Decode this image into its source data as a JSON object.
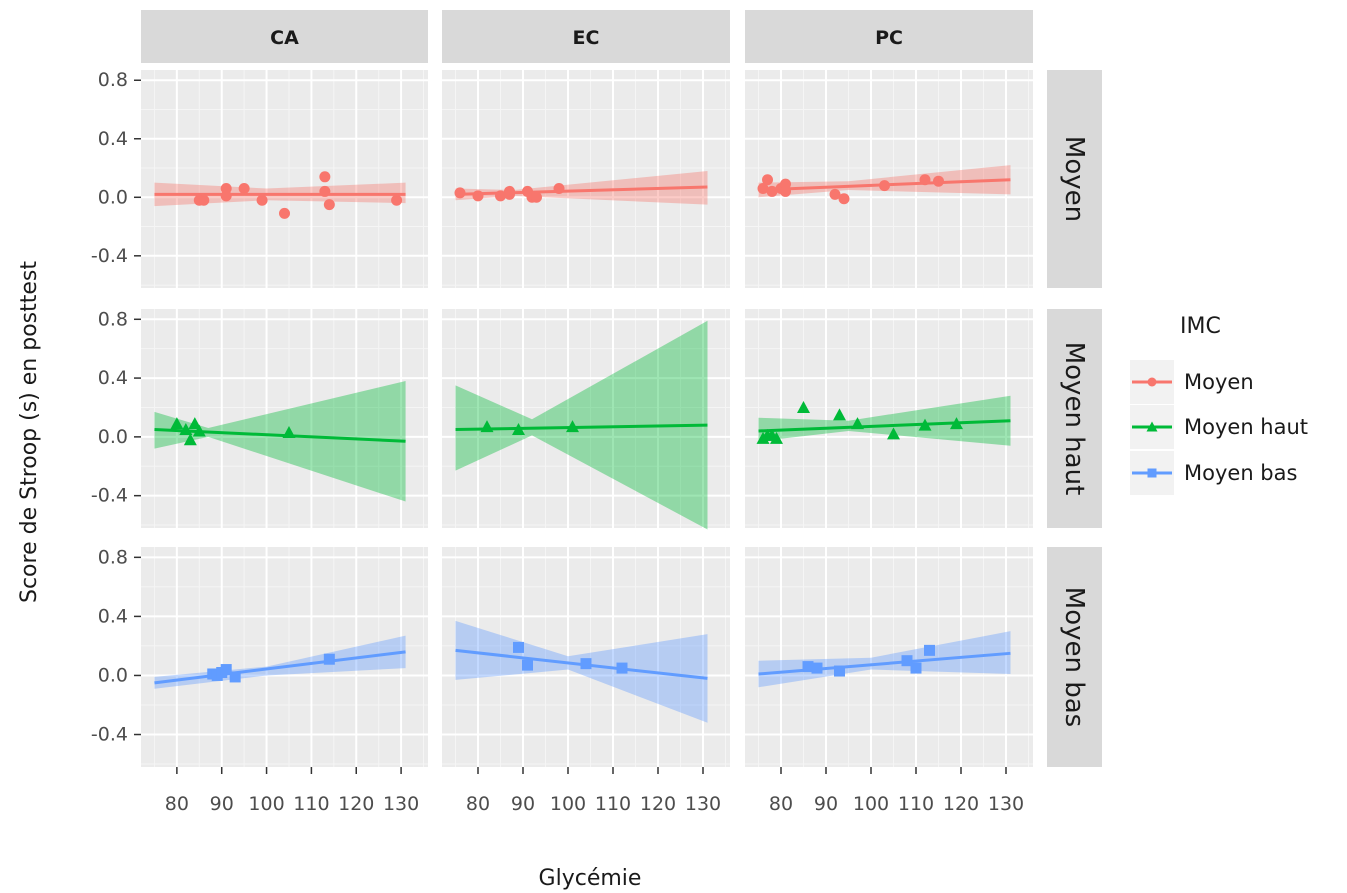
{
  "chart_data": {
    "type": "scatter",
    "xlabel": "Glycémie",
    "ylabel": "Score de Stroop (s) en posttest",
    "xlim": [
      72,
      136
    ],
    "ylim": [
      -0.62,
      0.87
    ],
    "x_ticks": [
      80,
      90,
      100,
      110,
      120,
      130
    ],
    "x_tick_labels": [
      "80",
      "90",
      "100",
      "110",
      "120",
      "130"
    ],
    "y_ticks": [
      -0.4,
      0.0,
      0.4,
      0.8
    ],
    "y_tick_labels": [
      "-0.4",
      "0.0",
      "0.4",
      "0.8"
    ],
    "grid": true,
    "legend": {
      "title": "IMC",
      "position": "right",
      "items": [
        {
          "label": "Moyen",
          "color": "#F8766D",
          "shape": "circle"
        },
        {
          "label": "Moyen haut",
          "color": "#00BA38",
          "shape": "triangle"
        },
        {
          "label": "Moyen bas",
          "color": "#619CFF",
          "shape": "square"
        }
      ]
    },
    "facet_columns": [
      "CA",
      "EC",
      "PC"
    ],
    "facet_rows": [
      "Moyen",
      "Moyen haut",
      "Moyen bas"
    ],
    "panels": [
      {
        "row": 0,
        "col": 0,
        "series": "Moyen",
        "points": [
          [
            85,
            -0.02
          ],
          [
            86,
            -0.02
          ],
          [
            91,
            0.06
          ],
          [
            91,
            0.01
          ],
          [
            95,
            0.06
          ],
          [
            99,
            -0.02
          ],
          [
            104,
            -0.11
          ],
          [
            113,
            0.14
          ],
          [
            113,
            0.04
          ],
          [
            114,
            -0.05
          ],
          [
            129,
            -0.02
          ]
        ],
        "fit": {
          "x": [
            75,
            131
          ],
          "y": [
            0.02,
            0.02
          ]
        },
        "band": {
          "lower": [
            -0.06,
            -0.04
          ],
          "mid": [
            -0.02
          ],
          "mid_x": [
            100
          ],
          "upper": [
            0.1,
            0.1
          ],
          "mid_upper": [
            0.06
          ]
        }
      },
      {
        "row": 0,
        "col": 1,
        "series": "Moyen",
        "points": [
          [
            76,
            0.03
          ],
          [
            80,
            0.01
          ],
          [
            85,
            0.01
          ],
          [
            87,
            0.04
          ],
          [
            87,
            0.02
          ],
          [
            91,
            0.04
          ],
          [
            92,
            0.0
          ],
          [
            93,
            0.0
          ],
          [
            98,
            0.06
          ]
        ],
        "fit": {
          "x": [
            75,
            131
          ],
          "y": [
            0.02,
            0.07
          ]
        },
        "band": {
          "lower": [
            -0.02,
            -0.05
          ],
          "mid": [
            0.01
          ],
          "mid_x": [
            88
          ],
          "upper": [
            0.06,
            0.18
          ],
          "mid_upper": [
            0.05
          ]
        }
      },
      {
        "row": 0,
        "col": 2,
        "series": "Moyen",
        "points": [
          [
            76,
            0.06
          ],
          [
            77,
            0.12
          ],
          [
            78,
            0.04
          ],
          [
            80,
            0.06
          ],
          [
            81,
            0.09
          ],
          [
            81,
            0.04
          ],
          [
            92,
            0.02
          ],
          [
            94,
            -0.01
          ],
          [
            103,
            0.08
          ],
          [
            112,
            0.12
          ],
          [
            115,
            0.11
          ]
        ],
        "fit": {
          "x": [
            75,
            131
          ],
          "y": [
            0.05,
            0.12
          ]
        },
        "band": {
          "lower": [
            0.0,
            0.02
          ],
          "mid": [
            0.05
          ],
          "mid_x": [
            95
          ],
          "upper": [
            0.1,
            0.22
          ],
          "mid_upper": [
            0.11
          ]
        }
      },
      {
        "row": 1,
        "col": 0,
        "series": "Moyen haut",
        "points": [
          [
            80,
            0.09
          ],
          [
            82,
            0.05
          ],
          [
            83,
            -0.02
          ],
          [
            84,
            0.09
          ],
          [
            85,
            0.04
          ],
          [
            105,
            0.03
          ]
        ],
        "fit": {
          "x": [
            75,
            131
          ],
          "y": [
            0.05,
            -0.03
          ]
        },
        "band": {
          "lower": [
            -0.08,
            -0.44
          ],
          "mid": [
            0.0
          ],
          "mid_x": [
            87
          ],
          "upper": [
            0.17,
            0.38
          ],
          "mid_upper": [
            0.06
          ]
        }
      },
      {
        "row": 1,
        "col": 1,
        "series": "Moyen haut",
        "points": [
          [
            82,
            0.07
          ],
          [
            89,
            0.05
          ],
          [
            101,
            0.07
          ]
        ],
        "fit": {
          "x": [
            75,
            131
          ],
          "y": [
            0.05,
            0.08
          ]
        },
        "band": {
          "lower": [
            -0.23,
            -0.63
          ],
          "mid": [
            0.01
          ],
          "mid_x": [
            92
          ],
          "upper": [
            0.35,
            0.79
          ],
          "mid_upper": [
            0.12
          ]
        }
      },
      {
        "row": 1,
        "col": 2,
        "series": "Moyen haut",
        "points": [
          [
            76,
            -0.01
          ],
          [
            77,
            0.01
          ],
          [
            78,
            0.01
          ],
          [
            79,
            -0.01
          ],
          [
            85,
            0.2
          ],
          [
            93,
            0.15
          ],
          [
            97,
            0.09
          ],
          [
            105,
            0.02
          ],
          [
            112,
            0.08
          ],
          [
            119,
            0.09
          ]
        ],
        "fit": {
          "x": [
            75,
            131
          ],
          "y": [
            0.04,
            0.11
          ]
        },
        "band": {
          "lower": [
            -0.03,
            -0.06
          ],
          "mid": [
            0.04
          ],
          "mid_x": [
            95
          ],
          "upper": [
            0.13,
            0.28
          ],
          "mid_upper": [
            0.11
          ]
        }
      },
      {
        "row": 2,
        "col": 0,
        "series": "Moyen bas",
        "points": [
          [
            88,
            0.01
          ],
          [
            89,
            0.0
          ],
          [
            90,
            0.02
          ],
          [
            91,
            0.04
          ],
          [
            93,
            -0.01
          ],
          [
            114,
            0.11
          ]
        ],
        "fit": {
          "x": [
            75,
            131
          ],
          "y": [
            -0.05,
            0.16
          ]
        },
        "band": {
          "lower": [
            -0.09,
            0.05
          ],
          "mid": [
            0.0
          ],
          "mid_x": [
            100
          ],
          "upper": [
            -0.01,
            0.27
          ],
          "mid_upper": [
            0.06
          ]
        }
      },
      {
        "row": 2,
        "col": 1,
        "series": "Moyen bas",
        "points": [
          [
            89,
            0.19
          ],
          [
            91,
            0.07
          ],
          [
            104,
            0.08
          ],
          [
            112,
            0.05
          ]
        ],
        "fit": {
          "x": [
            75,
            131
          ],
          "y": [
            0.17,
            -0.02
          ]
        },
        "band": {
          "lower": [
            -0.03,
            -0.32
          ],
          "mid": [
            0.04
          ],
          "mid_x": [
            100
          ],
          "upper": [
            0.37,
            0.28
          ],
          "mid_upper": [
            0.13
          ]
        }
      },
      {
        "row": 2,
        "col": 2,
        "series": "Moyen bas",
        "points": [
          [
            86,
            0.06
          ],
          [
            88,
            0.05
          ],
          [
            93,
            0.03
          ],
          [
            108,
            0.1
          ],
          [
            110,
            0.05
          ],
          [
            113,
            0.17
          ]
        ],
        "fit": {
          "x": [
            75,
            131
          ],
          "y": [
            0.01,
            0.15
          ]
        },
        "band": {
          "lower": [
            -0.08,
            0.01
          ],
          "mid": [
            0.04
          ],
          "mid_x": [
            100
          ],
          "upper": [
            0.1,
            0.3
          ],
          "mid_upper": [
            0.12
          ]
        }
      }
    ]
  }
}
